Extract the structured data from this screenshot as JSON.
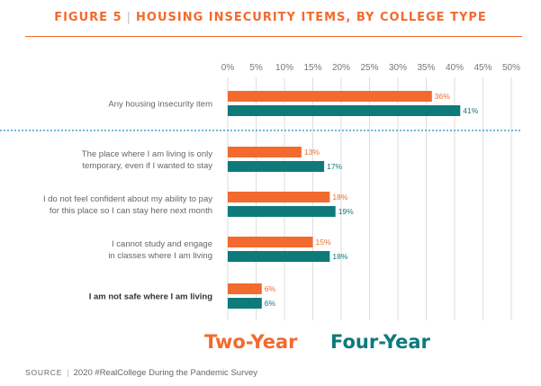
{
  "header": {
    "figure_label": "FIGURE 5",
    "separator": "|",
    "title": "HOUSING INSECURITY ITEMS, BY COLLEGE TYPE"
  },
  "colors": {
    "two_year": "#f26a2e",
    "four_year": "#0f7a7a",
    "grid": "#dddddd",
    "divider": "#1a8fc4"
  },
  "legend": {
    "two_year": "Two-Year",
    "four_year": "Four-Year"
  },
  "source": {
    "label": "SOURCE",
    "separator": "|",
    "text": "2020 #RealCollege During the Pandemic Survey"
  },
  "chart_data": {
    "type": "bar",
    "orientation": "horizontal",
    "title": "HOUSING INSECURITY ITEMS, BY COLLEGE TYPE",
    "xlim": [
      0,
      50
    ],
    "x_ticks": [
      "0%",
      "5%",
      "10%",
      "15%",
      "20%",
      "25%",
      "30%",
      "35%",
      "40%",
      "45%",
      "50%"
    ],
    "grid": "vertical",
    "categories": [
      {
        "lines": [
          "Any housing insecurity item"
        ],
        "bold": false
      },
      {
        "lines": [
          "The place where I am living is only",
          "temporary, even if I wanted to stay"
        ],
        "bold": false
      },
      {
        "lines": [
          "I do not feel confident about my ability to pay",
          "for this place so I can stay here next month"
        ],
        "bold": false
      },
      {
        "lines": [
          "I cannot study and engage",
          "in classes where I am living"
        ],
        "bold": false
      },
      {
        "lines": [
          "I am not safe where I am living"
        ],
        "bold": true
      }
    ],
    "series": [
      {
        "name": "Two-Year",
        "values": [
          36,
          13,
          18,
          15,
          6
        ],
        "labels": [
          "36%",
          "13%",
          "18%",
          "15%",
          "6%"
        ]
      },
      {
        "name": "Four-Year",
        "values": [
          41,
          17,
          19,
          18,
          6
        ],
        "labels": [
          "41%",
          "17%",
          "19%",
          "18%",
          "6%"
        ]
      }
    ]
  }
}
